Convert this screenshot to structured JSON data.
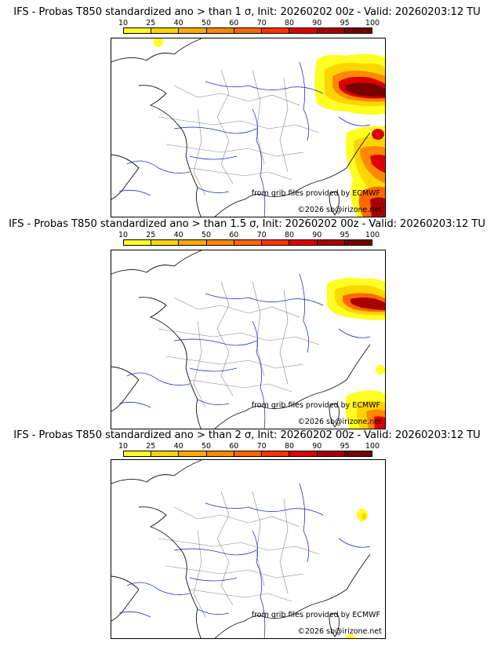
{
  "legend_labels": [
    "10",
    "25",
    "40",
    "50",
    "60",
    "70",
    "80",
    "90",
    "95",
    "100"
  ],
  "legend_colors": [
    "#ffff22",
    "#ffd500",
    "#ffaa00",
    "#ff8800",
    "#ff6600",
    "#ff3300",
    "#dd0000",
    "#a80000",
    "#770000"
  ],
  "colors": {
    "coast": "#111111",
    "rivers": "#2233cc",
    "borders": "#888888"
  },
  "panels": [
    {
      "title": "IFS - Probas T850  standardized ano > than 1 σ, Init: 20260202 00z - Valid: 20260203:12 TU",
      "source": "from grib files provided by ECMWF",
      "copyright": "©2026 sb@irizone.net"
    },
    {
      "title": "IFS - Probas T850  standardized ano > than 1.5 σ, Init: 20260202 00z - Valid: 20260203:12 TU",
      "source": "from grib files provided by ECMWF",
      "copyright": "©2026 sb@irizone.net"
    },
    {
      "title": "IFS - Probas T850  standardized ano > than 2 σ, Init: 20260202 00z - Valid: 20260203:12 TU",
      "source": "from grib files provided by ECMWF",
      "copyright": "©2026 sb@irizone.net"
    }
  ]
}
